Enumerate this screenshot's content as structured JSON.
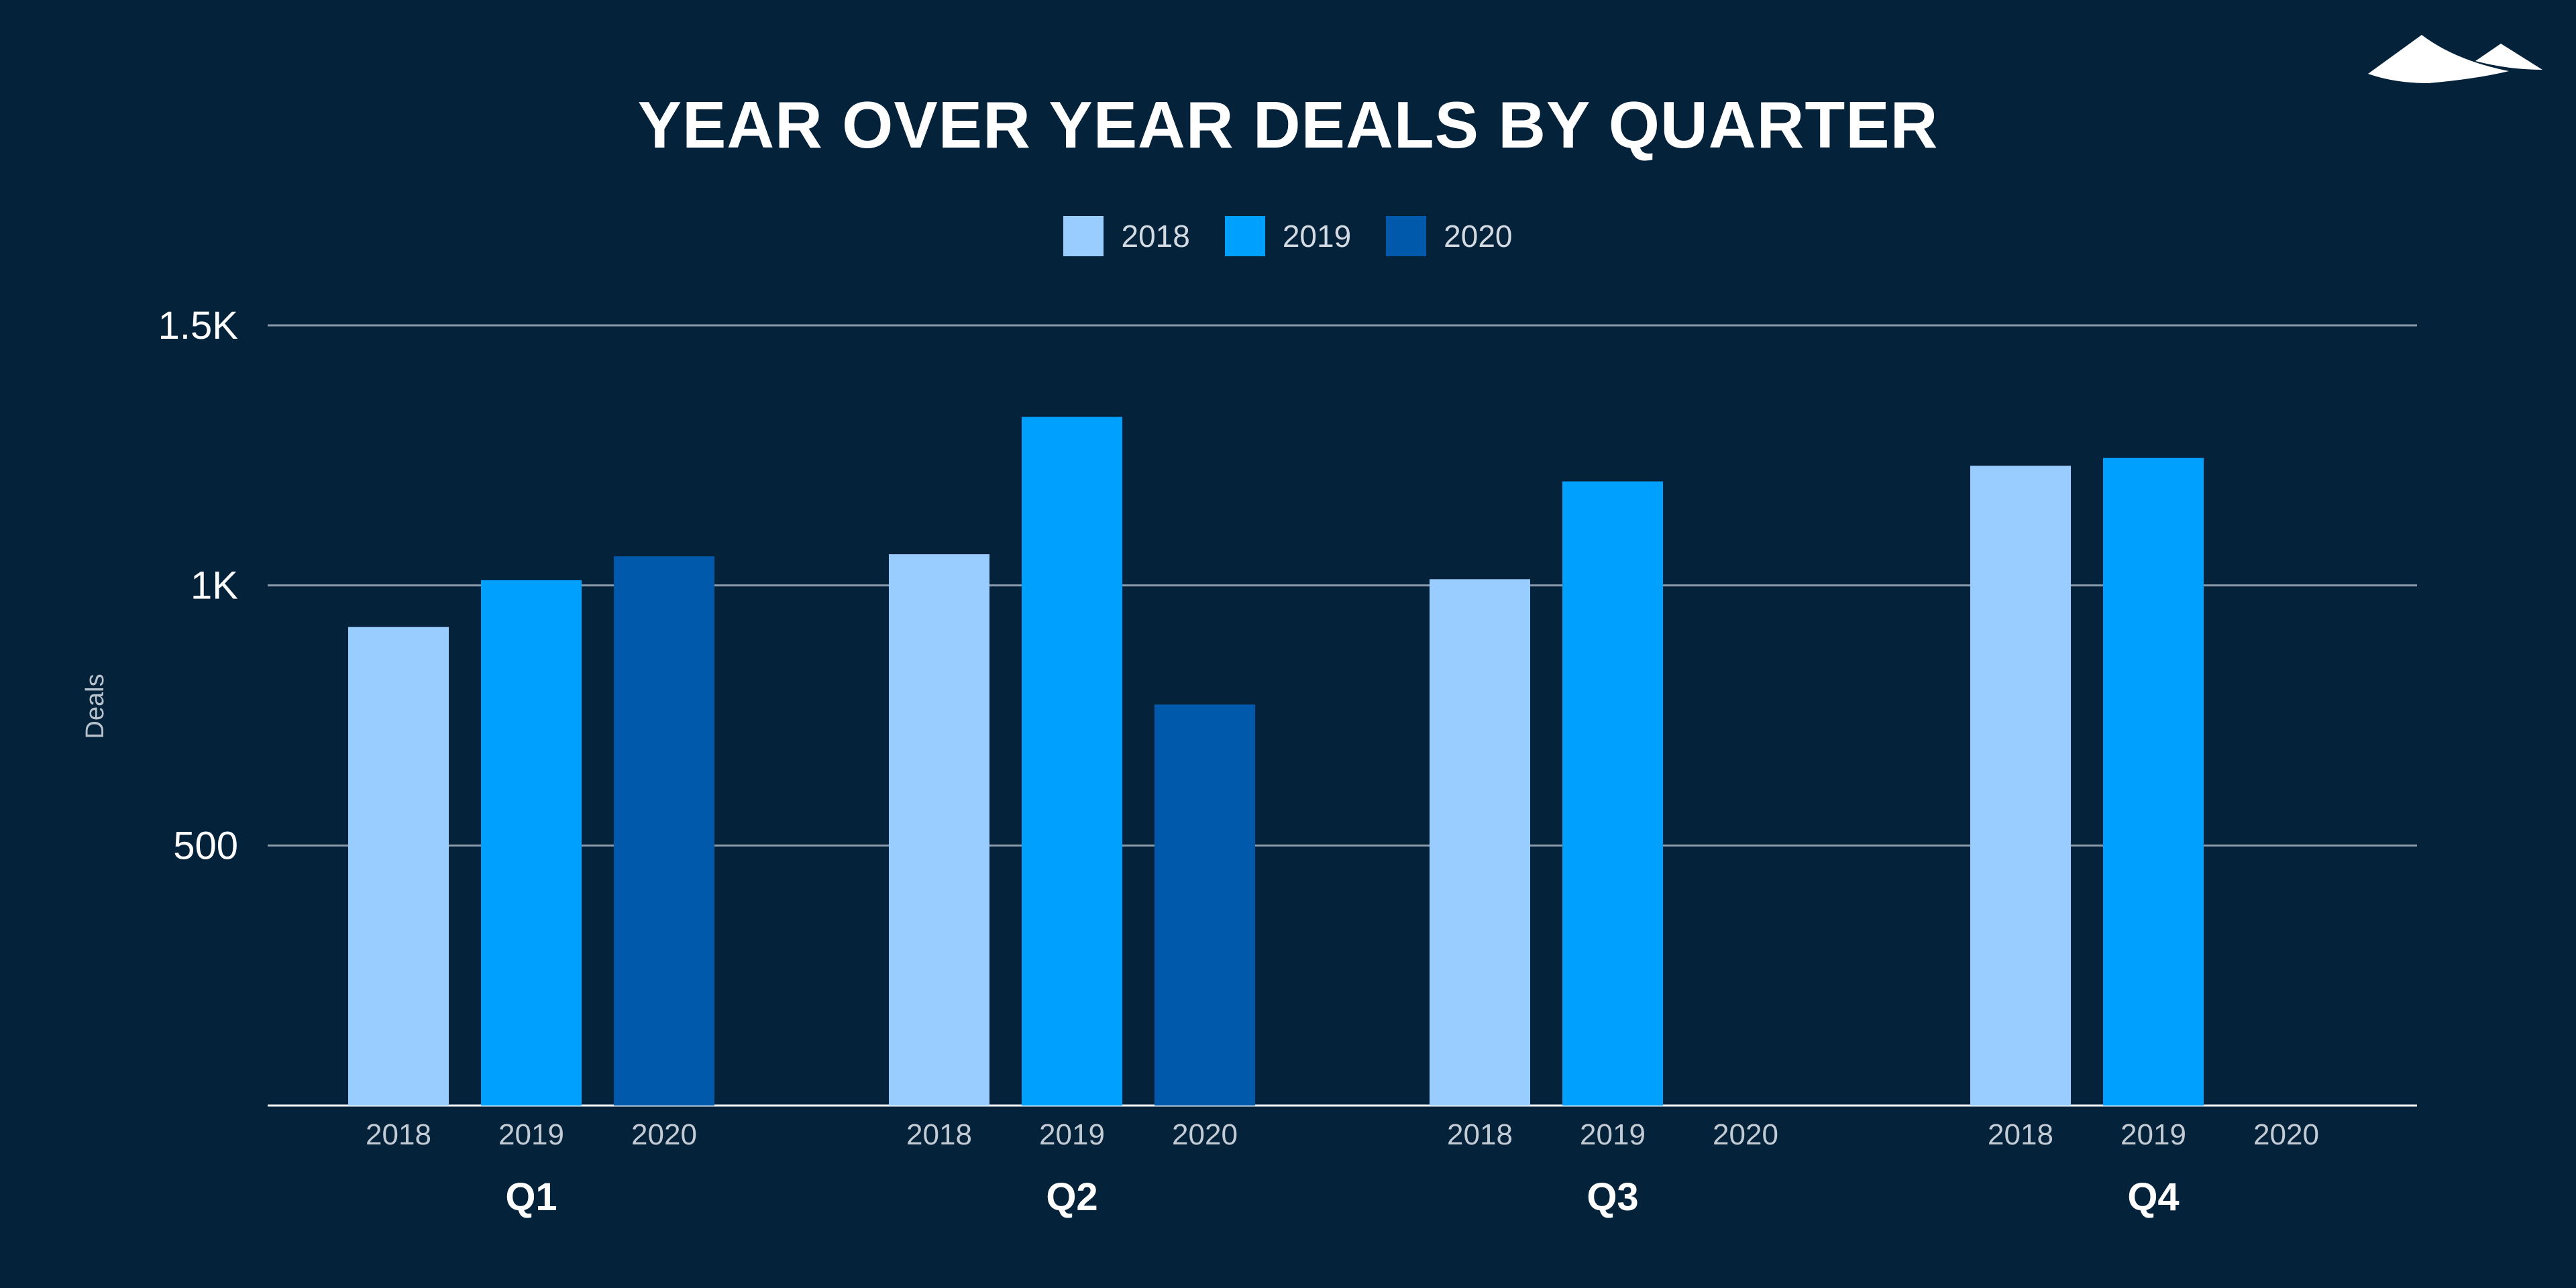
{
  "logo": "mountain-logo",
  "chart_data": {
    "type": "bar",
    "title": "YEAR OVER YEAR DEALS BY QUARTER",
    "ylabel": "Deals",
    "xlabel": "",
    "ylim": [
      0,
      1500
    ],
    "yticks": [
      {
        "value": 500,
        "label": "500"
      },
      {
        "value": 1000,
        "label": "1K"
      },
      {
        "value": 1500,
        "label": "1.5K"
      }
    ],
    "grid": true,
    "legend_position": "top-center",
    "categories": [
      "Q1",
      "Q2",
      "Q3",
      "Q4"
    ],
    "subcategories": [
      "2018",
      "2019",
      "2020"
    ],
    "series": [
      {
        "name": "2018",
        "color": "#99ccff",
        "values": [
          920,
          1060,
          1012,
          1230
        ]
      },
      {
        "name": "2019",
        "color": "#00a0ff",
        "values": [
          1010,
          1324,
          1200,
          1245
        ]
      },
      {
        "name": "2020",
        "color": "#0059ab",
        "values": [
          1056,
          771,
          null,
          null
        ]
      }
    ],
    "background": "#04233b"
  }
}
